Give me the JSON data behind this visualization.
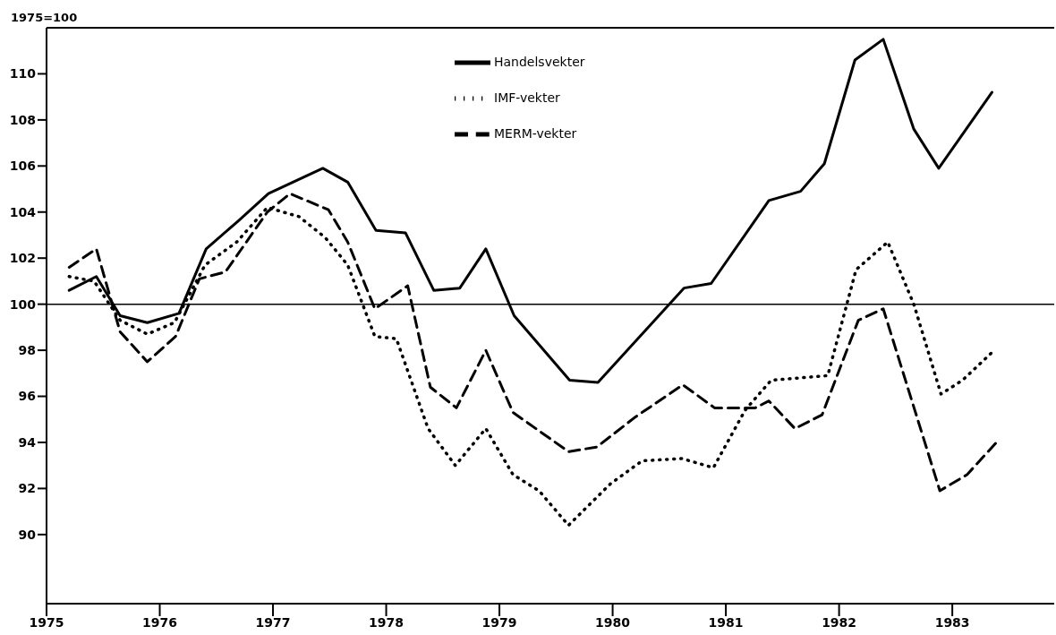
{
  "chart_data": {
    "type": "line",
    "ylabel": "1975=100",
    "xlim": [
      1975,
      1983.9
    ],
    "xticks": [
      1975,
      1976,
      1977,
      1978,
      1979,
      1980,
      1981,
      1982,
      1983
    ],
    "ylim": [
      87,
      112
    ],
    "yticks": [
      90,
      92,
      94,
      96,
      98,
      100,
      102,
      104,
      106,
      108,
      110
    ],
    "grid": false,
    "legend": "top",
    "marker": "none",
    "ref_lines": [
      {
        "axis": "y",
        "value": 100,
        "label": null,
        "color": "#000000"
      }
    ],
    "series": [
      {
        "name": "Handelsvekter",
        "color": "#000000",
        "line_style": "solid",
        "x": [
          1975.2,
          1975.44,
          1975.65,
          1975.89,
          1976.17,
          1976.41,
          1976.69,
          1976.96,
          1977.44,
          1977.66,
          1977.91,
          1978.17,
          1978.42,
          1978.65,
          1978.88,
          1979.13,
          1979.62,
          1979.87,
          1980.63,
          1980.87,
          1981.38,
          1981.66,
          1981.87,
          1982.14,
          1982.39,
          1982.66,
          1982.88,
          1983.35
        ],
        "values": [
          100.6,
          101.2,
          99.5,
          99.2,
          99.6,
          102.4,
          103.6,
          104.8,
          105.9,
          105.3,
          103.2,
          103.1,
          100.6,
          100.7,
          102.4,
          99.5,
          96.7,
          96.6,
          100.7,
          100.9,
          104.5,
          104.9,
          106.1,
          110.6,
          111.5,
          107.6,
          105.9,
          109.2
        ]
      },
      {
        "name": "IMF-vekter",
        "color": "#000000",
        "line_style": "dotted",
        "x": [
          1975.2,
          1975.42,
          1975.65,
          1975.89,
          1976.13,
          1976.4,
          1976.68,
          1976.95,
          1977.23,
          1977.46,
          1977.66,
          1977.9,
          1978.09,
          1978.37,
          1978.61,
          1978.88,
          1979.12,
          1979.35,
          1979.61,
          1979.98,
          1980.26,
          1980.61,
          1980.89,
          1981.17,
          1981.4,
          1981.9,
          1982.15,
          1982.43,
          1982.66,
          1982.9,
          1983.09,
          1983.37
        ],
        "values": [
          101.2,
          101.0,
          99.3,
          98.7,
          99.2,
          101.7,
          102.7,
          104.2,
          103.8,
          102.9,
          101.7,
          98.6,
          98.5,
          94.6,
          93.0,
          94.6,
          92.6,
          91.9,
          90.4,
          92.2,
          93.2,
          93.3,
          92.9,
          95.4,
          96.7,
          96.9,
          101.5,
          102.7,
          100.0,
          96.1,
          96.7,
          98.0
        ]
      },
      {
        "name": "MERM-vekter",
        "color": "#000000",
        "line_style": "dashed",
        "x": [
          1975.2,
          1975.44,
          1975.65,
          1975.89,
          1976.14,
          1976.35,
          1976.58,
          1976.95,
          1977.15,
          1977.49,
          1977.66,
          1977.9,
          1978.19,
          1978.39,
          1978.62,
          1978.88,
          1979.12,
          1979.61,
          1979.86,
          1980.2,
          1980.62,
          1980.9,
          1981.26,
          1981.38,
          1981.61,
          1981.85,
          1982.17,
          1982.39,
          1982.89,
          1983.13,
          1983.39
        ],
        "values": [
          101.6,
          102.4,
          98.8,
          97.5,
          98.6,
          101.1,
          101.4,
          104.0,
          104.8,
          104.1,
          102.7,
          99.8,
          100.8,
          96.4,
          95.5,
          98.0,
          95.3,
          93.6,
          93.8,
          95.1,
          96.5,
          95.5,
          95.5,
          95.8,
          94.6,
          95.2,
          99.3,
          99.8,
          91.9,
          92.6,
          94.0
        ]
      }
    ]
  }
}
